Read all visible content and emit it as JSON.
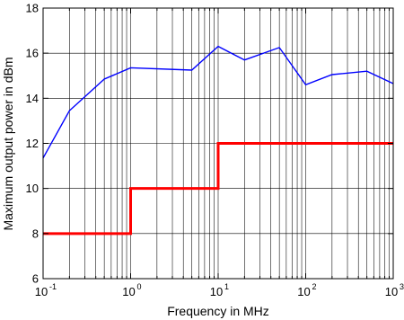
{
  "chart_data": {
    "type": "line",
    "xlabel": "Frequency in MHz",
    "ylabel": "Maximum output power in dBm",
    "xscale": "log",
    "xlim": [
      0.1,
      1000
    ],
    "ylim": [
      6,
      18
    ],
    "grid": {
      "x_minor": true,
      "y_major": true
    },
    "xticks": [
      {
        "base": "10",
        "exp": "-1",
        "value": 0.1
      },
      {
        "base": "10",
        "exp": "0",
        "value": 1
      },
      {
        "base": "10",
        "exp": "1",
        "value": 10
      },
      {
        "base": "10",
        "exp": "2",
        "value": 100
      },
      {
        "base": "10",
        "exp": "3",
        "value": 1000
      }
    ],
    "yticks": [
      "6",
      "8",
      "10",
      "12",
      "14",
      "16",
      "18"
    ],
    "series": [
      {
        "color": "#0000ff",
        "style": "thin",
        "x": [
          0.1,
          0.2,
          0.5,
          1,
          5,
          10,
          20,
          50,
          100,
          200,
          500,
          1000
        ],
        "y": [
          11.35,
          13.45,
          14.85,
          15.35,
          15.25,
          16.3,
          15.7,
          16.25,
          14.6,
          15.05,
          15.2,
          14.65
        ]
      },
      {
        "color": "#ff0000",
        "style": "thick",
        "x": [
          0.1,
          1,
          1,
          10,
          10,
          1000
        ],
        "y": [
          8,
          8,
          10,
          10,
          12,
          12
        ]
      }
    ]
  }
}
